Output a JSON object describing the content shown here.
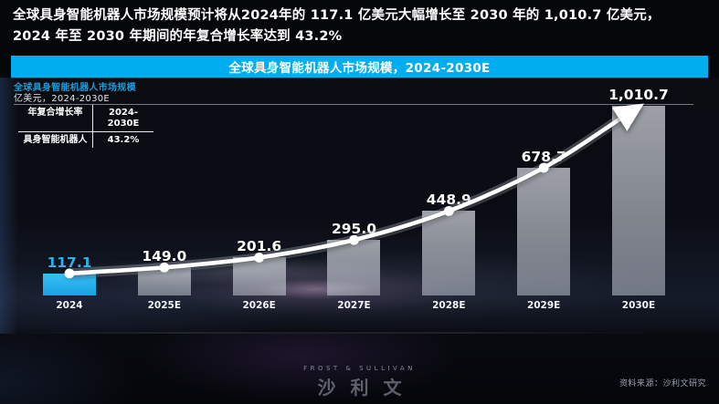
{
  "headline": {
    "line1": "全球具身智能机器人市场规模预计将从2024年的 117.1 亿美元大幅增长至 2030 年的 1,010.7 亿美元，",
    "line2": "2024 年至 2030 年期间的年复合增长率达到 43.2%"
  },
  "banner": {
    "title": "全球具身智能机器人市场规模，2024-2030E",
    "background_color": "#00aeef"
  },
  "chart_data": {
    "type": "bar",
    "title": "全球具身智能机器人市场规模",
    "unit_line": "亿美元，2024-2030E",
    "categories": [
      "2024",
      "2025E",
      "2026E",
      "2027E",
      "2028E",
      "2029E",
      "2030E"
    ],
    "values": [
      117.1,
      149.0,
      201.6,
      295.0,
      448.9,
      678.7,
      1010.7
    ],
    "value_labels": [
      "117.1",
      "149.0",
      "201.6",
      "295.0",
      "448.9",
      "678.7",
      "1,010.7"
    ],
    "ylim": [
      0,
      1016
    ],
    "grid": false,
    "highlight_index": 0,
    "trend_line": "curved ascending arrow through bar tops",
    "cagr_table": {
      "header": [
        "年复合增长率",
        "2024-2030E"
      ],
      "row": [
        "具身智能机器人",
        "43.2%"
      ]
    },
    "colors": {
      "highlight_bar": "#29b7ef",
      "bar": "rgba(225,230,240,0.58)",
      "trend_line": "#ffffff",
      "title": "#1f9ad8",
      "value_label": "#ffffff",
      "highlight_value_label": "#2cb4ea"
    }
  },
  "footer": {
    "logo_top": "FROST & SULLIVAN",
    "logo_main": "沙利文",
    "source": "资料来源：沙利文研究"
  }
}
